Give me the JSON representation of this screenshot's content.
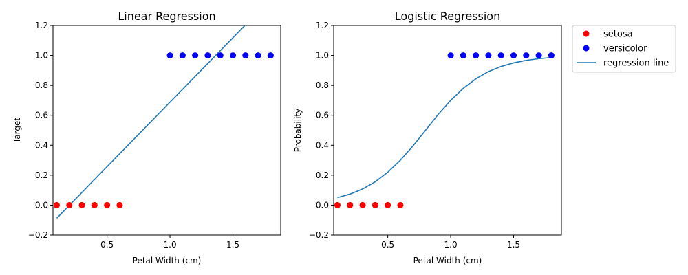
{
  "chart_data": [
    {
      "type": "scatter",
      "title": "Linear Regression",
      "xlabel": "Petal Width (cm)",
      "ylabel": "Target",
      "xlim": [
        0.07,
        1.88
      ],
      "ylim": [
        -0.2,
        1.2
      ],
      "xticks": [
        0.5,
        1.0,
        1.5
      ],
      "xtick_labels": [
        "0.5",
        "1.0",
        "1.5"
      ],
      "yticks": [
        -0.2,
        0.0,
        0.2,
        0.4,
        0.6,
        0.8,
        1.0,
        1.2
      ],
      "ytick_labels": [
        "−0.2",
        "0.0",
        "0.2",
        "0.4",
        "0.6",
        "0.8",
        "1.0",
        "1.2"
      ],
      "grid": false,
      "series": [
        {
          "name": "setosa",
          "kind": "scatter",
          "color": "#ff0000",
          "x": [
            0.1,
            0.2,
            0.3,
            0.4,
            0.5,
            0.6
          ],
          "y": [
            0,
            0,
            0,
            0,
            0,
            0
          ]
        },
        {
          "name": "versicolor",
          "kind": "scatter",
          "color": "#0000ff",
          "x": [
            1.0,
            1.1,
            1.2,
            1.3,
            1.4,
            1.5,
            1.6,
            1.7,
            1.8
          ],
          "y": [
            1,
            1,
            1,
            1,
            1,
            1,
            1,
            1,
            1
          ]
        },
        {
          "name": "regression line",
          "kind": "line",
          "color": "#1f77b4",
          "x": [
            0.1,
            1.6
          ],
          "y": [
            -0.087,
            1.204
          ]
        }
      ]
    },
    {
      "type": "scatter",
      "title": "Logistic Regression",
      "xlabel": "Petal Width (cm)",
      "ylabel": "Probability",
      "xlim": [
        0.07,
        1.88
      ],
      "ylim": [
        -0.2,
        1.2
      ],
      "xticks": [
        0.5,
        1.0,
        1.5
      ],
      "xtick_labels": [
        "0.5",
        "1.0",
        "1.5"
      ],
      "yticks": [
        -0.2,
        0.0,
        0.2,
        0.4,
        0.6,
        0.8,
        1.0,
        1.2
      ],
      "ytick_labels": [
        "−0.2",
        "0.0",
        "0.2",
        "0.4",
        "0.6",
        "0.8",
        "1.0",
        "1.2"
      ],
      "grid": false,
      "series": [
        {
          "name": "setosa",
          "kind": "scatter",
          "color": "#ff0000",
          "x": [
            0.1,
            0.2,
            0.3,
            0.4,
            0.5,
            0.6
          ],
          "y": [
            0,
            0,
            0,
            0,
            0,
            0
          ]
        },
        {
          "name": "versicolor",
          "kind": "scatter",
          "color": "#0000ff",
          "x": [
            1.0,
            1.1,
            1.2,
            1.3,
            1.4,
            1.5,
            1.6,
            1.7,
            1.8
          ],
          "y": [
            1,
            1,
            1,
            1,
            1,
            1,
            1,
            1,
            1
          ]
        },
        {
          "name": "regression line",
          "kind": "line",
          "color": "#1f77b4",
          "x": [
            0.1,
            0.2,
            0.3,
            0.4,
            0.5,
            0.6,
            0.7,
            0.8,
            0.9,
            1.0,
            1.1,
            1.2,
            1.3,
            1.4,
            1.5,
            1.6,
            1.7,
            1.8
          ],
          "y": [
            0.05,
            0.074,
            0.108,
            0.156,
            0.22,
            0.3,
            0.395,
            0.5,
            0.605,
            0.7,
            0.78,
            0.844,
            0.892,
            0.926,
            0.95,
            0.967,
            0.978,
            0.986
          ]
        }
      ]
    }
  ],
  "legend": {
    "placement": "outside-right",
    "entries": [
      {
        "label": "setosa",
        "kind": "marker",
        "color": "#ff0000"
      },
      {
        "label": "versicolor",
        "kind": "marker",
        "color": "#0000ff"
      },
      {
        "label": "regression line",
        "kind": "line",
        "color": "#1f77b4"
      }
    ]
  }
}
